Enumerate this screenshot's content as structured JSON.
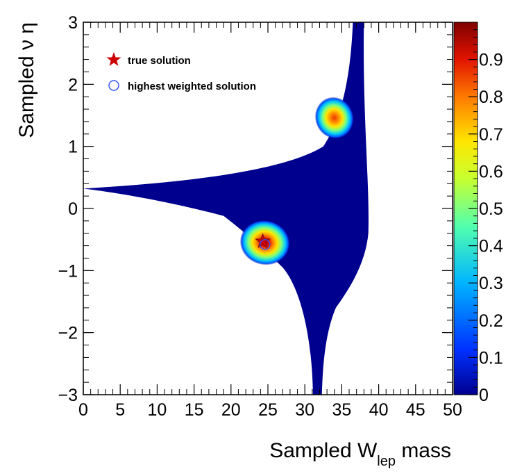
{
  "chart_data": {
    "type": "heatmap",
    "title": "",
    "xlabel": {
      "main": "Sampled W",
      "sub": "lep",
      "tail": " mass"
    },
    "ylabel": "Sampled ν η",
    "xlim": [
      0,
      50
    ],
    "ylim": [
      -3,
      3
    ],
    "zlim": [
      0,
      1
    ],
    "x_ticks": [
      "0",
      "5",
      "10",
      "15",
      "20",
      "25",
      "30",
      "35",
      "40",
      "45",
      "50"
    ],
    "y_ticks": [
      "3",
      "2",
      "1",
      "0",
      "−1",
      "−2",
      "−3"
    ],
    "z_ticks": [
      "0.9",
      "0.8",
      "0.7",
      "0.6",
      "0.5",
      "0.4",
      "0.3",
      "0.2",
      "0.1",
      "0"
    ],
    "colormap": [
      "#00008f",
      "#0040ff",
      "#00c8ff",
      "#7dff7d",
      "#ffe600",
      "#ff7a00",
      "#e21400",
      "#800000"
    ],
    "background_color": "#00008f",
    "allowed_region": {
      "left_tip": [
        0,
        0.32
      ],
      "upper_tip": [
        37.2,
        3.0
      ],
      "lower_tip": [
        31.7,
        -3.0
      ]
    },
    "hotspots": [
      {
        "x": 34.0,
        "y": 1.46,
        "peak": 0.75
      },
      {
        "x": 24.6,
        "y": -0.55,
        "peak": 0.92
      }
    ],
    "markers": [
      {
        "name": "true solution",
        "symbol": "star",
        "color": "#cc0000",
        "x": 24.3,
        "y": -0.53
      },
      {
        "name": "highest weighted solution",
        "symbol": "open-circle",
        "color": "#3050ff",
        "x": 24.6,
        "y": -0.58
      }
    ],
    "legend": [
      {
        "label": "true solution",
        "symbol": "star",
        "color": "#cc0000"
      },
      {
        "label": "highest weighted solution",
        "symbol": "open-circle",
        "color": "#3050ff"
      }
    ],
    "legend_position": "top-left",
    "grid": false
  }
}
